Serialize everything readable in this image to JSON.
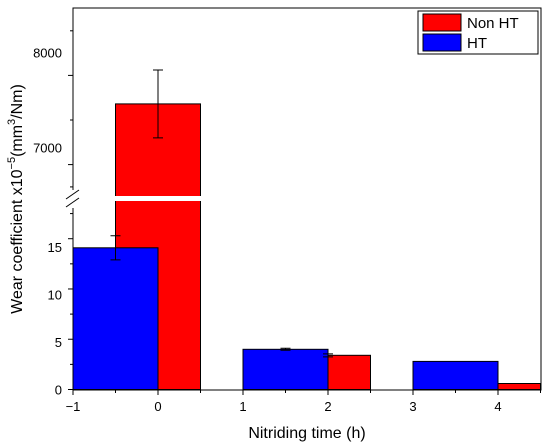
{
  "chart_data": {
    "type": "bar",
    "xlabel": "Nitriding time (h)",
    "ylabel_main": "Wear coefficient x10",
    "ylabel_exp": "−5",
    "ylabel_unit_a": "(mm",
    "ylabel_unit_exp": "3",
    "ylabel_unit_b": "/Nm)",
    "x_ticks": [
      "−1",
      "0",
      "1",
      "2",
      "3",
      "4"
    ],
    "xlim": [
      -1,
      4.5
    ],
    "y_lower_ticks": [
      "0",
      "5",
      "10",
      "15"
    ],
    "y_upper_ticks": [
      "7000",
      "8000"
    ],
    "y_lower_range": [
      0,
      19
    ],
    "y_upper_range": [
      6620,
      8750
    ],
    "axis_break": true,
    "bar_width": 1.0,
    "legend_position": "top-right",
    "series": [
      {
        "name": "Non HT",
        "color": "#ff0000",
        "x": [
          0,
          2,
          4
        ],
        "values": [
          7680,
          3.4,
          0.6
        ],
        "errors": [
          380,
          0.15,
          0
        ]
      },
      {
        "name": "HT",
        "color": "#0000ff",
        "x": [
          -0.5,
          1.5,
          3.5
        ],
        "values": [
          14.1,
          4.0,
          2.8
        ],
        "errors": [
          1.2,
          0.1,
          0
        ]
      }
    ]
  }
}
